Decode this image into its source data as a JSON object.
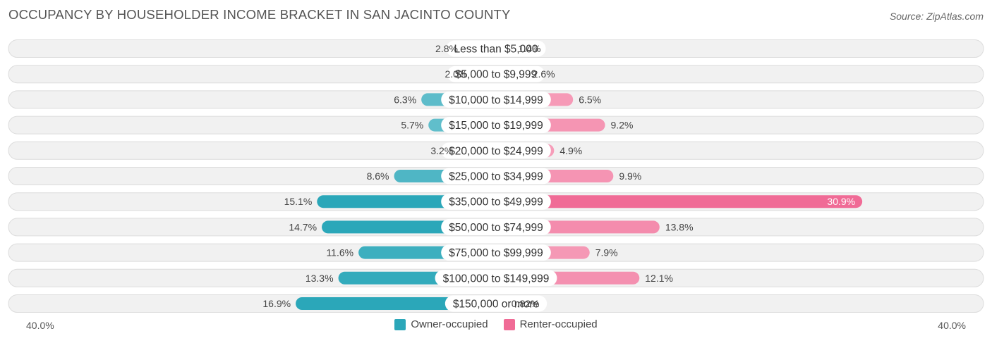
{
  "title": "OCCUPANCY BY HOUSEHOLDER INCOME BRACKET IN SAN JACINTO COUNTY",
  "source": "Source: ZipAtlas.com",
  "colors": {
    "owner_dark": "#2ba7b9",
    "owner_light": "#82ccd7",
    "renter_dark": "#f06b96",
    "renter_light": "#f7a7c0",
    "row_bg": "#f1f1f1",
    "row_border": "#dcdcdc"
  },
  "chart_data": {
    "type": "bar",
    "orientation": "horizontal-diverging",
    "title": "OCCUPANCY BY HOUSEHOLDER INCOME BRACKET IN SAN JACINTO COUNTY",
    "categories": [
      "Less than $5,000",
      "$5,000 to $9,999",
      "$10,000 to $14,999",
      "$15,000 to $19,999",
      "$20,000 to $24,999",
      "$25,000 to $34,999",
      "$35,000 to $49,999",
      "$50,000 to $74,999",
      "$75,000 to $99,999",
      "$100,000 to $149,999",
      "$150,000 or more"
    ],
    "series": [
      {
        "name": "Owner-occupied",
        "values": [
          2.8,
          2.0,
          6.3,
          5.7,
          3.2,
          8.6,
          15.1,
          14.7,
          11.6,
          13.3,
          16.9
        ],
        "labels": [
          "2.8%",
          "2.0%",
          "6.3%",
          "5.7%",
          "3.2%",
          "8.6%",
          "15.1%",
          "14.7%",
          "11.6%",
          "13.3%",
          "16.9%"
        ]
      },
      {
        "name": "Renter-occupied",
        "values": [
          1.4,
          2.6,
          6.5,
          9.2,
          4.9,
          9.9,
          30.9,
          13.8,
          7.9,
          12.1,
          0.82
        ],
        "labels": [
          "1.4%",
          "2.6%",
          "6.5%",
          "9.2%",
          "4.9%",
          "9.9%",
          "30.9%",
          "13.8%",
          "7.9%",
          "12.1%",
          "0.82%"
        ]
      }
    ],
    "xlim": [
      -40,
      40
    ],
    "axis_labels": {
      "left": "40.0%",
      "right": "40.0%"
    },
    "legend": [
      "Owner-occupied",
      "Renter-occupied"
    ],
    "legend_position": "bottom-center"
  }
}
